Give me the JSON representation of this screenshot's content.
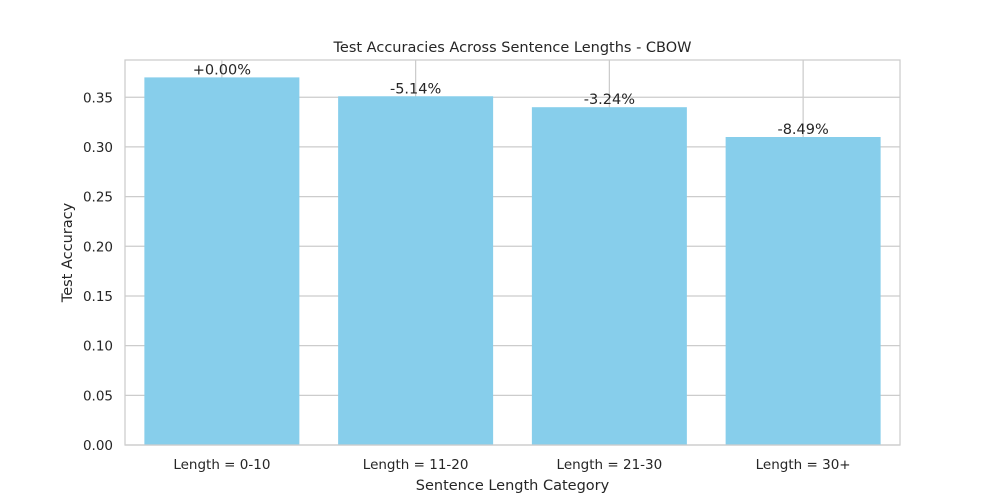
{
  "chart_data": {
    "type": "bar",
    "title": "Test Accuracies Across Sentence Lengths - CBOW",
    "xlabel": "Sentence Length Category",
    "ylabel": "Test Accuracy",
    "categories": [
      "Length = 0-10",
      "Length = 11-20",
      "Length = 21-30",
      "Length = 30+"
    ],
    "values": [
      0.37,
      0.351,
      0.34,
      0.31
    ],
    "data_labels": [
      "+0.00%",
      "-5.14%",
      "-3.24%",
      "-8.49%"
    ],
    "ylim": [
      0,
      0.3875
    ],
    "yticks": [
      0.0,
      0.05,
      0.1,
      0.15,
      0.2,
      0.25,
      0.3,
      0.35
    ],
    "ytick_labels": [
      "0.00",
      "0.05",
      "0.10",
      "0.15",
      "0.20",
      "0.25",
      "0.30",
      "0.35"
    ],
    "grid": true,
    "legend": "none",
    "colors": {
      "bar": "#87ceeb",
      "grid": "#cccccc",
      "axes_edge": "#cccccc",
      "text": "#262626",
      "background": "#ffffff"
    }
  }
}
